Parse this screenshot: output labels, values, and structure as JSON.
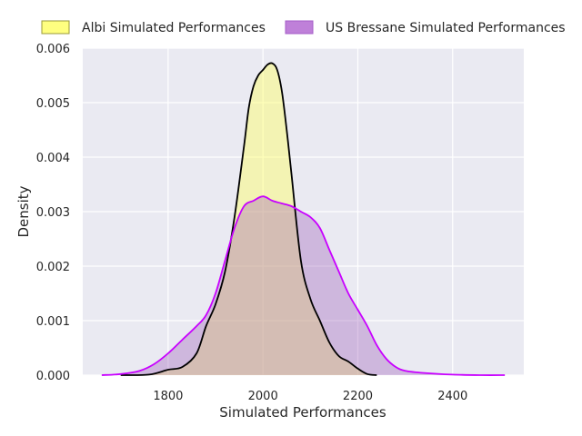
{
  "chart_data": {
    "type": "area",
    "title": "",
    "xlabel": "Simulated Performances",
    "ylabel": "Density",
    "xlim": [
      1620,
      2550
    ],
    "ylim": [
      0,
      0.006
    ],
    "x_ticks": [
      1800,
      2000,
      2200,
      2400
    ],
    "y_ticks": [
      0.0,
      0.001,
      0.002,
      0.003,
      0.004,
      0.005,
      0.006
    ],
    "y_tick_labels": [
      "0.000",
      "0.001",
      "0.002",
      "0.003",
      "0.004",
      "0.005",
      "0.006"
    ],
    "grid": true,
    "legend_position": "top",
    "background": "#eaeaf2",
    "series": [
      {
        "name": "Albi Simulated Performances",
        "fill_color": "#ffff66",
        "fill_opacity": 0.45,
        "line_color": "#000000",
        "legend_fill": "#ffff80",
        "legend_edge": "#9a9a3a",
        "x": [
          1700,
          1760,
          1800,
          1830,
          1860,
          1880,
          1900,
          1920,
          1940,
          1960,
          1970,
          1980,
          1990,
          2000,
          2010,
          2020,
          2030,
          2040,
          2050,
          2060,
          2080,
          2100,
          2120,
          2140,
          2160,
          2180,
          2200,
          2220,
          2240
        ],
        "values": [
          0.0,
          1e-05,
          0.0001,
          0.00015,
          0.0004,
          0.0009,
          0.0013,
          0.0019,
          0.0029,
          0.0042,
          0.0049,
          0.0053,
          0.0055,
          0.0056,
          0.0057,
          0.00572,
          0.0056,
          0.0052,
          0.0045,
          0.0037,
          0.0021,
          0.0014,
          0.001,
          0.0006,
          0.00035,
          0.00025,
          0.00012,
          2e-05,
          0.0
        ]
      },
      {
        "name": "US Bressane Simulated Performances",
        "fill_color": "#9b59b6",
        "fill_opacity": 0.35,
        "line_color": "#c800ff",
        "legend_fill": "#bf80d9",
        "legend_edge": "#a45cc8",
        "x": [
          1660,
          1700,
          1740,
          1770,
          1800,
          1830,
          1860,
          1880,
          1900,
          1920,
          1940,
          1960,
          1980,
          2000,
          2020,
          2040,
          2060,
          2080,
          2100,
          2120,
          2140,
          2160,
          2180,
          2200,
          2220,
          2240,
          2260,
          2280,
          2300,
          2340,
          2400,
          2460,
          2510
        ],
        "values": [
          0.0,
          2e-05,
          8e-05,
          0.0002,
          0.0004,
          0.00065,
          0.0009,
          0.0011,
          0.0015,
          0.0021,
          0.0027,
          0.0031,
          0.0032,
          0.00328,
          0.0032,
          0.00315,
          0.0031,
          0.003,
          0.0029,
          0.0027,
          0.0023,
          0.0019,
          0.0015,
          0.0012,
          0.0009,
          0.00055,
          0.0003,
          0.00015,
          8e-05,
          4e-05,
          1e-05,
          0.0,
          0.0
        ]
      }
    ]
  }
}
